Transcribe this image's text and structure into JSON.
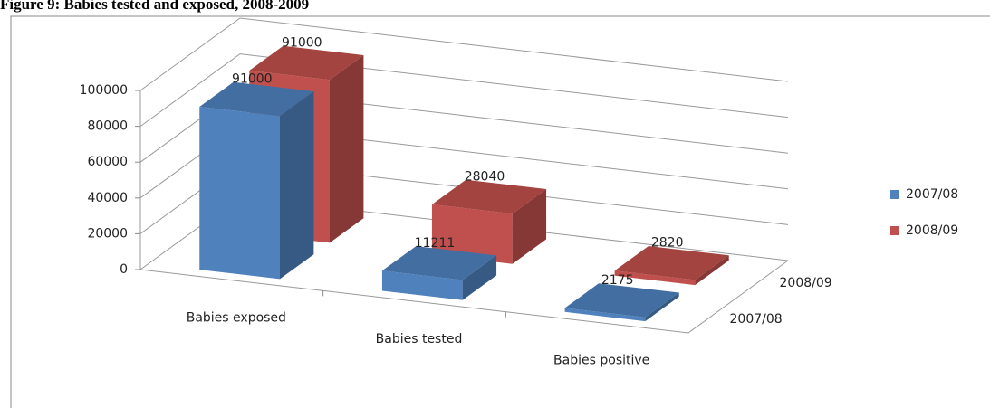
{
  "chart_data": {
    "type": "bar3d",
    "title": "Figure 9: Babies tested and exposed, 2008-2009",
    "categories": [
      "Babies exposed",
      "Babies tested",
      "Babies positive"
    ],
    "series": [
      {
        "name": "2007/08",
        "color": "#4f81bd",
        "values": [
          91000,
          11211,
          2175
        ]
      },
      {
        "name": "2008/09",
        "color": "#c0504d",
        "values": [
          91000,
          28040,
          2820
        ]
      }
    ],
    "ylim": [
      0,
      100000
    ],
    "yticks": [
      0,
      20000,
      40000,
      60000,
      80000,
      100000
    ],
    "grid": true,
    "legend": "right"
  }
}
